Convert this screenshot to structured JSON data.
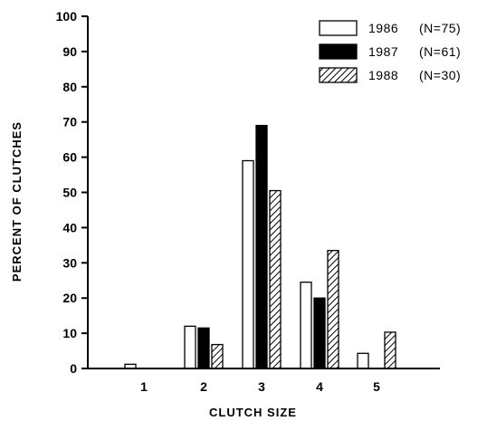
{
  "chart_data": {
    "type": "bar",
    "categories": [
      "1",
      "2",
      "3",
      "4",
      "5"
    ],
    "series": [
      {
        "name": "1986",
        "n_label": "(N=75)",
        "values": [
          1.2,
          12,
          59,
          24.5,
          4.3
        ],
        "fill": "#ffffff"
      },
      {
        "name": "1987",
        "n_label": "(N=61)",
        "values": [
          0,
          11.5,
          69,
          20,
          0
        ],
        "fill": "#000000"
      },
      {
        "name": "1988",
        "n_label": "(N=30)",
        "values": [
          0,
          6.8,
          50.5,
          33.5,
          10.3
        ],
        "fill": "hatch"
      }
    ],
    "title": "",
    "xlabel": "CLUTCH SIZE",
    "ylabel": "PERCENT OF CLUTCHES",
    "ylim": [
      0,
      100
    ],
    "yticks": [
      "0",
      "10",
      "20",
      "30",
      "40",
      "50",
      "60",
      "70",
      "80",
      "90",
      "100"
    ],
    "grid": false,
    "legend_position": "top-right"
  }
}
